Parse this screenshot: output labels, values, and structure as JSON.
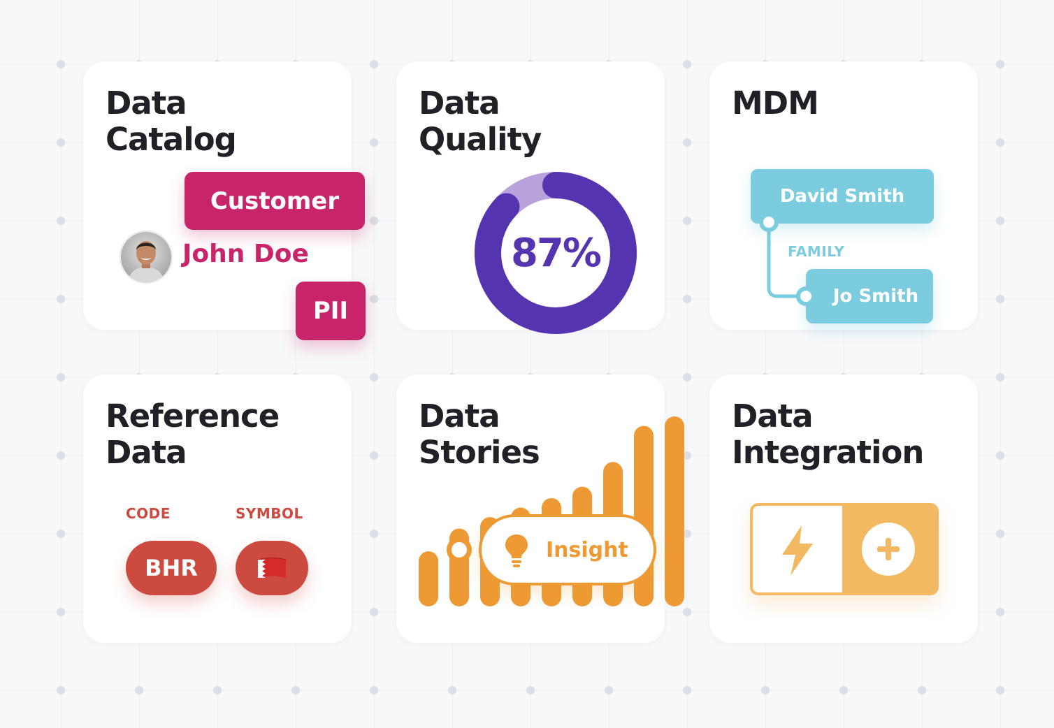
{
  "colors": {
    "background": "#f7f8fa",
    "card": "#ffffff",
    "title": "#1f2126",
    "catalog_accent": "#c7246a",
    "quality_primary": "#5534b0",
    "quality_secondary": "#b7a2dc",
    "mdm_accent": "#7cccdf",
    "reference_accent": "#cc4a3f",
    "stories_accent": "#ee9a34",
    "integration_accent": "#f3b962"
  },
  "cards": {
    "data_catalog": {
      "title_line1": "Data",
      "title_line2": "Catalog",
      "tag_primary": "Customer",
      "person_name": "John Doe",
      "tag_secondary": "PII"
    },
    "data_quality": {
      "title_line1": "Data",
      "title_line2": "Quality",
      "score_label": "87%",
      "score_fraction": 0.87
    },
    "mdm": {
      "title_line1": "MDM",
      "node_parent": "David Smith",
      "relationship": "FAMILY",
      "node_child": "Jo Smith"
    },
    "reference_data": {
      "title_line1": "Reference",
      "title_line2": "Data",
      "code_header": "CODE",
      "symbol_header": "SYMBOL",
      "code_value": "BHR",
      "symbol_icon": "bahrain-flag-icon"
    },
    "data_stories": {
      "title_line1": "Data",
      "title_line2": "Stories",
      "insight_label": "Insight",
      "insight_icon": "lightbulb-icon",
      "bar_levels": [
        0.29,
        0.41,
        0.47,
        0.52,
        0.57,
        0.63,
        0.76,
        0.95,
        1.0
      ]
    },
    "data_integration": {
      "title_line1": "Data",
      "title_line2": "Integration",
      "left_icon": "lightning-bolt-icon",
      "right_icon": "plus-icon"
    }
  }
}
